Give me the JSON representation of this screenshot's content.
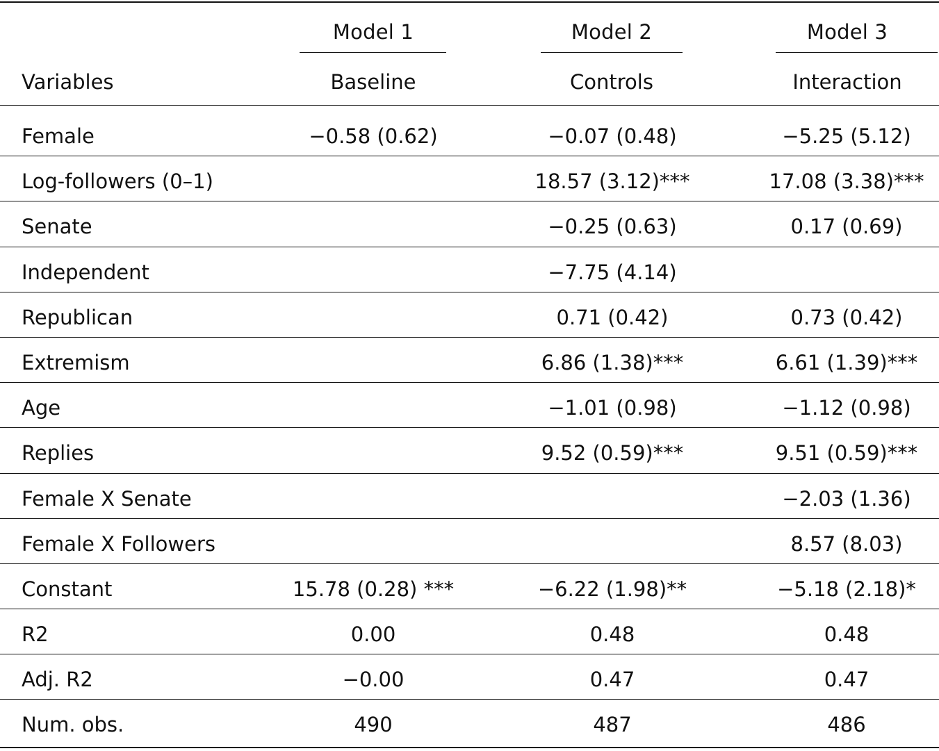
{
  "table": {
    "header": {
      "models": [
        "Model 1",
        "Model 2",
        "Model 3"
      ],
      "subheads": [
        "Baseline",
        "Controls",
        "Interaction"
      ],
      "variables_label": "Variables"
    },
    "rows": [
      {
        "label": "Female",
        "m1": "−0.58 (0.62)",
        "m2": "−0.07 (0.48)",
        "m3": "−5.25 (5.12)"
      },
      {
        "label": "Log-followers (0–1)",
        "m1": "",
        "m2": "18.57 (3.12)***",
        "m3": "17.08 (3.38)***"
      },
      {
        "label": "Senate",
        "m1": "",
        "m2": "−0.25 (0.63)",
        "m3": "0.17 (0.69)"
      },
      {
        "label": "Independent",
        "m1": "",
        "m2": "−7.75 (4.14)",
        "m3": ""
      },
      {
        "label": "Republican",
        "m1": "",
        "m2": "0.71 (0.42)",
        "m3": "0.73 (0.42)"
      },
      {
        "label": "Extremism",
        "m1": "",
        "m2": "6.86 (1.38)***",
        "m3": "6.61 (1.39)***"
      },
      {
        "label": "Age",
        "m1": "",
        "m2": "−1.01 (0.98)",
        "m3": "−1.12 (0.98)"
      },
      {
        "label": "Replies",
        "m1": "",
        "m2": "9.52 (0.59)***",
        "m3": "9.51 (0.59)***"
      },
      {
        "label": "Female X Senate",
        "m1": "",
        "m2": "",
        "m3": "−2.03 (1.36)"
      },
      {
        "label": "Female X Followers",
        "m1": "",
        "m2": "",
        "m3": "8.57 (8.03)"
      },
      {
        "label": "Constant",
        "m1": "15.78 (0.28) ***",
        "m2": "−6.22 (1.98)**",
        "m3": "−5.18 (2.18)*"
      },
      {
        "label": "R2",
        "m1": "0.00",
        "m2": "0.48",
        "m3": "0.48"
      },
      {
        "label": "Adj. R2",
        "m1": "−0.00",
        "m2": "0.47",
        "m3": "0.47"
      },
      {
        "label": "Num. obs.",
        "m1": "490",
        "m2": "487",
        "m3": "486"
      }
    ]
  }
}
